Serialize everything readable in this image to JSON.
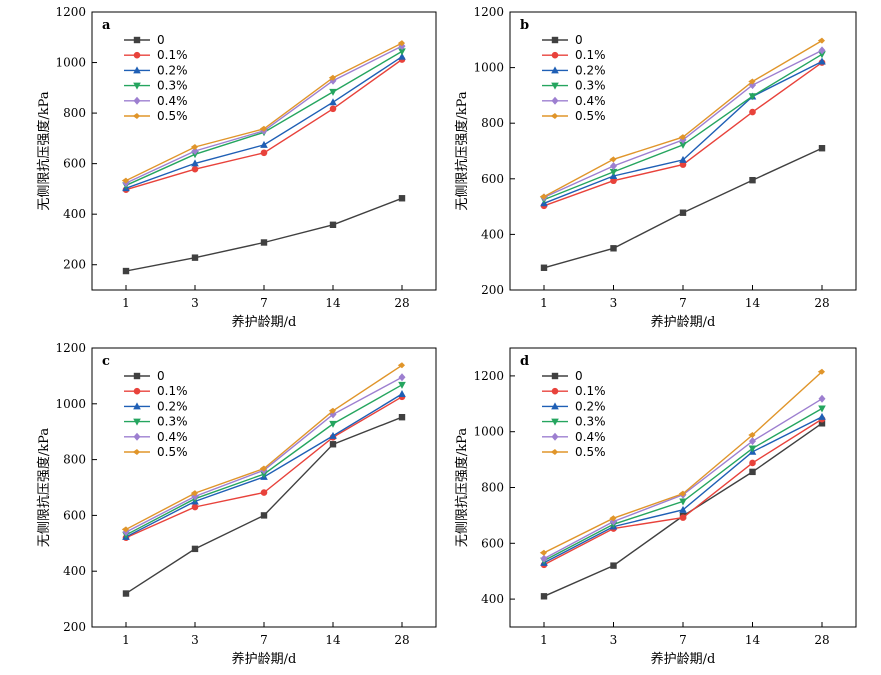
{
  "chart_data": [
    {
      "type": "line",
      "panel_label": "a",
      "categories": [
        "1",
        "3",
        "7",
        "14",
        "28"
      ],
      "xlabel": "养护龄期/d",
      "ylabel": "无侧限抗压强度/kPa",
      "ylim": [
        100,
        1200
      ],
      "yticks": [
        200,
        400,
        600,
        800,
        1000,
        1200
      ],
      "legend_position": "top-left",
      "series": [
        {
          "name": "0",
          "color": "#404040",
          "marker": "square",
          "values": [
            175,
            228,
            288,
            358,
            463
          ]
        },
        {
          "name": "0.1%",
          "color": "#e8423b",
          "marker": "circle",
          "values": [
            497,
            578,
            643,
            817,
            1012
          ]
        },
        {
          "name": "0.2%",
          "color": "#1f5fb5",
          "marker": "triangle-up",
          "values": [
            503,
            601,
            674,
            843,
            1023
          ]
        },
        {
          "name": "0.3%",
          "color": "#25a55f",
          "marker": "triangle-down",
          "values": [
            514,
            637,
            724,
            884,
            1044
          ]
        },
        {
          "name": "0.4%",
          "color": "#9d7fd0",
          "marker": "diamond",
          "values": [
            523,
            650,
            730,
            928,
            1065
          ]
        },
        {
          "name": "0.5%",
          "color": "#e0952a",
          "marker": "diamond-left",
          "values": [
            533,
            666,
            738,
            940,
            1077
          ]
        }
      ]
    },
    {
      "type": "line",
      "panel_label": "b",
      "categories": [
        "1",
        "3",
        "7",
        "14",
        "28"
      ],
      "xlabel": "养护龄期/d",
      "ylabel": "无侧限抗压强度/kPa",
      "ylim": [
        200,
        1200
      ],
      "yticks": [
        200,
        400,
        600,
        800,
        1000,
        1200
      ],
      "legend_position": "top-left",
      "series": [
        {
          "name": "0",
          "color": "#404040",
          "marker": "square",
          "values": [
            280,
            350,
            478,
            595,
            710
          ]
        },
        {
          "name": "0.1%",
          "color": "#e8423b",
          "marker": "circle",
          "values": [
            503,
            593,
            651,
            840,
            1018
          ]
        },
        {
          "name": "0.2%",
          "color": "#1f5fb5",
          "marker": "triangle-up",
          "values": [
            512,
            610,
            668,
            896,
            1022
          ]
        },
        {
          "name": "0.3%",
          "color": "#25a55f",
          "marker": "triangle-down",
          "values": [
            525,
            625,
            722,
            897,
            1048
          ]
        },
        {
          "name": "0.4%",
          "color": "#9d7fd0",
          "marker": "diamond",
          "values": [
            533,
            646,
            740,
            937,
            1062
          ]
        },
        {
          "name": "0.5%",
          "color": "#e0952a",
          "marker": "diamond-left",
          "values": [
            536,
            670,
            750,
            950,
            1097
          ]
        }
      ]
    },
    {
      "type": "line",
      "panel_label": "c",
      "categories": [
        "1",
        "3",
        "7",
        "14",
        "28"
      ],
      "xlabel": "养护龄期/d",
      "ylabel": "无侧限抗压强度/kPa",
      "ylim": [
        200,
        1200
      ],
      "yticks": [
        200,
        400,
        600,
        800,
        1000,
        1200
      ],
      "legend_position": "top-left",
      "series": [
        {
          "name": "0",
          "color": "#404040",
          "marker": "square",
          "values": [
            320,
            480,
            600,
            855,
            952
          ]
        },
        {
          "name": "0.1%",
          "color": "#e8423b",
          "marker": "circle",
          "values": [
            520,
            630,
            682,
            880,
            1025
          ]
        },
        {
          "name": "0.2%",
          "color": "#1f5fb5",
          "marker": "triangle-up",
          "values": [
            523,
            650,
            738,
            885,
            1035
          ]
        },
        {
          "name": "0.3%",
          "color": "#25a55f",
          "marker": "triangle-down",
          "values": [
            530,
            660,
            748,
            928,
            1068
          ]
        },
        {
          "name": "0.4%",
          "color": "#9d7fd0",
          "marker": "diamond",
          "values": [
            540,
            668,
            762,
            962,
            1095
          ]
        },
        {
          "name": "0.5%",
          "color": "#e0952a",
          "marker": "diamond-left",
          "values": [
            550,
            680,
            768,
            975,
            1138
          ]
        }
      ]
    },
    {
      "type": "line",
      "panel_label": "d",
      "categories": [
        "1",
        "3",
        "7",
        "14",
        "28"
      ],
      "xlabel": "养护龄期/d",
      "ylabel": "无侧限抗压强度/kPa",
      "ylim": [
        300,
        1300
      ],
      "yticks": [
        400,
        600,
        800,
        1000,
        1200
      ],
      "legend_position": "top-left",
      "series": [
        {
          "name": "0",
          "color": "#404040",
          "marker": "square",
          "values": [
            410,
            520,
            698,
            856,
            1030
          ]
        },
        {
          "name": "0.1%",
          "color": "#e8423b",
          "marker": "circle",
          "values": [
            523,
            653,
            692,
            888,
            1045
          ]
        },
        {
          "name": "0.2%",
          "color": "#1f5fb5",
          "marker": "triangle-up",
          "values": [
            530,
            660,
            720,
            928,
            1053
          ]
        },
        {
          "name": "0.3%",
          "color": "#25a55f",
          "marker": "triangle-down",
          "values": [
            538,
            668,
            750,
            940,
            1083
          ]
        },
        {
          "name": "0.4%",
          "color": "#9d7fd0",
          "marker": "diamond",
          "values": [
            545,
            678,
            774,
            966,
            1118
          ]
        },
        {
          "name": "0.5%",
          "color": "#e0952a",
          "marker": "diamond-left",
          "values": [
            566,
            690,
            778,
            988,
            1215
          ]
        }
      ]
    }
  ]
}
